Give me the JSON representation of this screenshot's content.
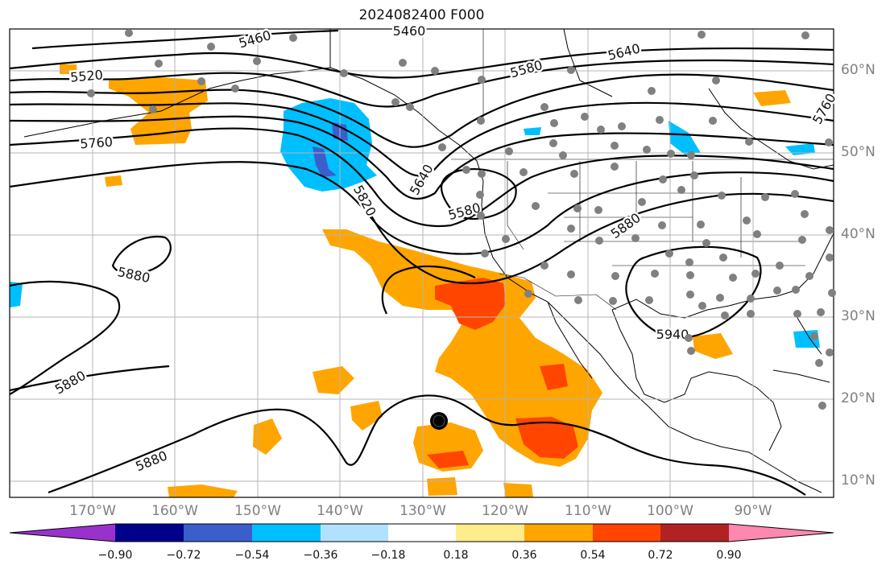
{
  "title": "2024082400 F000",
  "lat_labels": [
    "60°N",
    "50°N",
    "40°N",
    "30°N",
    "20°N",
    "10°N"
  ],
  "lon_labels": [
    "170°W",
    "160°W",
    "150°W",
    "140°W",
    "130°W",
    "120°W",
    "110°W",
    "100°W",
    "90°W"
  ],
  "contour_labels": [
    "5460",
    "5460",
    "5520",
    "5580",
    "5640",
    "5760",
    "5760",
    "5820",
    "5640",
    "5580",
    "5880",
    "5880",
    "5880",
    "5880",
    "5940"
  ],
  "colorbar": {
    "tick_labels": [
      "−0.90",
      "−0.72",
      "−0.54",
      "−0.36",
      "−0.18",
      "0.18",
      "0.36",
      "0.54",
      "0.72",
      "0.90"
    ],
    "colors": [
      "#9932cc",
      "#00008b",
      "#3a5fcd",
      "#00bfff",
      "#b0e2ff",
      "#ffffff",
      "#ffec8b",
      "#ffa500",
      "#ff4500",
      "#b22222",
      "#ff88b0"
    ]
  },
  "storm_marker": {
    "symbol": "tropical-cyclone",
    "color": "#000000"
  }
}
